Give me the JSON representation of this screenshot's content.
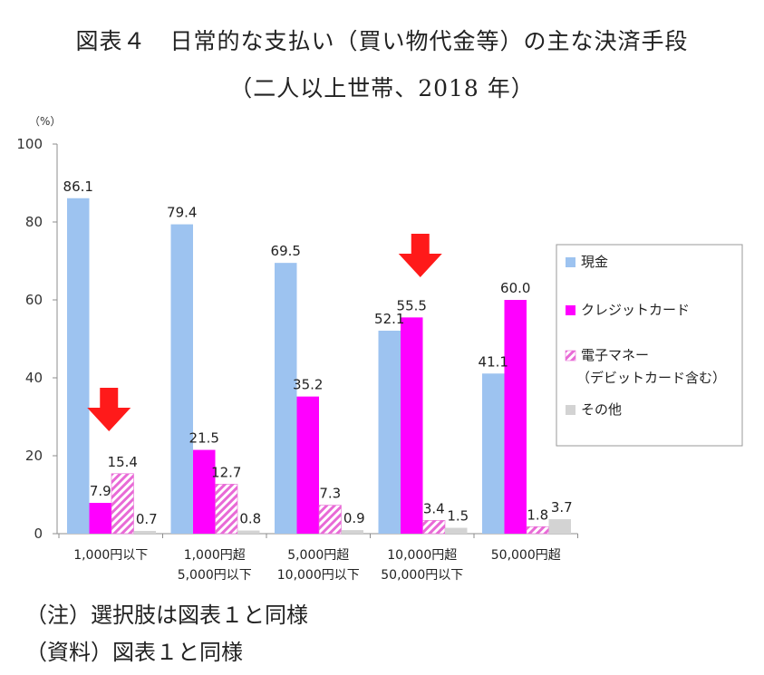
{
  "title_line1": "図表４　日常的な支払い（買い物代金等）の主な決済手段",
  "title_line2": "（二人以上世帯、2018 年）",
  "notes": {
    "note": "（注）選択肢は図表１と同様",
    "source": "（資料）図表１と同様"
  },
  "colors": {
    "cash": "#9dc3f0",
    "credit": "#ff00ff",
    "emoney": "#e86ad6",
    "other": "#d3d3d3",
    "arrow": "#ff1a1a"
  },
  "chart_data": {
    "type": "bar",
    "y_unit_label": "（%）",
    "ylim": [
      0,
      100
    ],
    "yticks": [
      0,
      20,
      40,
      60,
      80,
      100
    ],
    "categories": [
      [
        "1,000円以下"
      ],
      [
        "1,000円超",
        "5,000円以下"
      ],
      [
        "5,000円超",
        "10,000円以下"
      ],
      [
        "10,000円超",
        "50,000円以下"
      ],
      [
        "50,000円超"
      ]
    ],
    "series": [
      {
        "name": "現金",
        "legend_lines": [
          "現金"
        ],
        "pattern": "solid",
        "values": [
          86.1,
          79.4,
          69.5,
          52.1,
          41.1
        ]
      },
      {
        "name": "クレジットカード",
        "legend_lines": [
          "クレジットカード"
        ],
        "pattern": "solid",
        "values": [
          7.9,
          21.5,
          35.2,
          55.5,
          60.0
        ]
      },
      {
        "name": "電子マネー（デビットカード含む）",
        "legend_lines": [
          "電子マネー",
          "（デビットカード含む）"
        ],
        "pattern": "hatch",
        "values": [
          15.4,
          12.7,
          7.3,
          3.4,
          1.8
        ]
      },
      {
        "name": "その他",
        "legend_lines": [
          "その他"
        ],
        "pattern": "solid",
        "values": [
          0.7,
          0.8,
          0.9,
          1.5,
          3.7
        ]
      }
    ],
    "value_labels": [
      [
        "86.1",
        "79.4",
        "69.5",
        "52.1",
        "41.1"
      ],
      [
        "7.9",
        "21.5",
        "35.2",
        "55.5",
        "60.0"
      ],
      [
        "15.4",
        "12.7",
        "7.3",
        "3.4",
        "1.8"
      ],
      [
        "0.7",
        "0.8",
        "0.9",
        "1.5",
        "3.7"
      ]
    ],
    "highlight_arrows": [
      0,
      3
    ],
    "grid": false,
    "legend_position": "right"
  }
}
